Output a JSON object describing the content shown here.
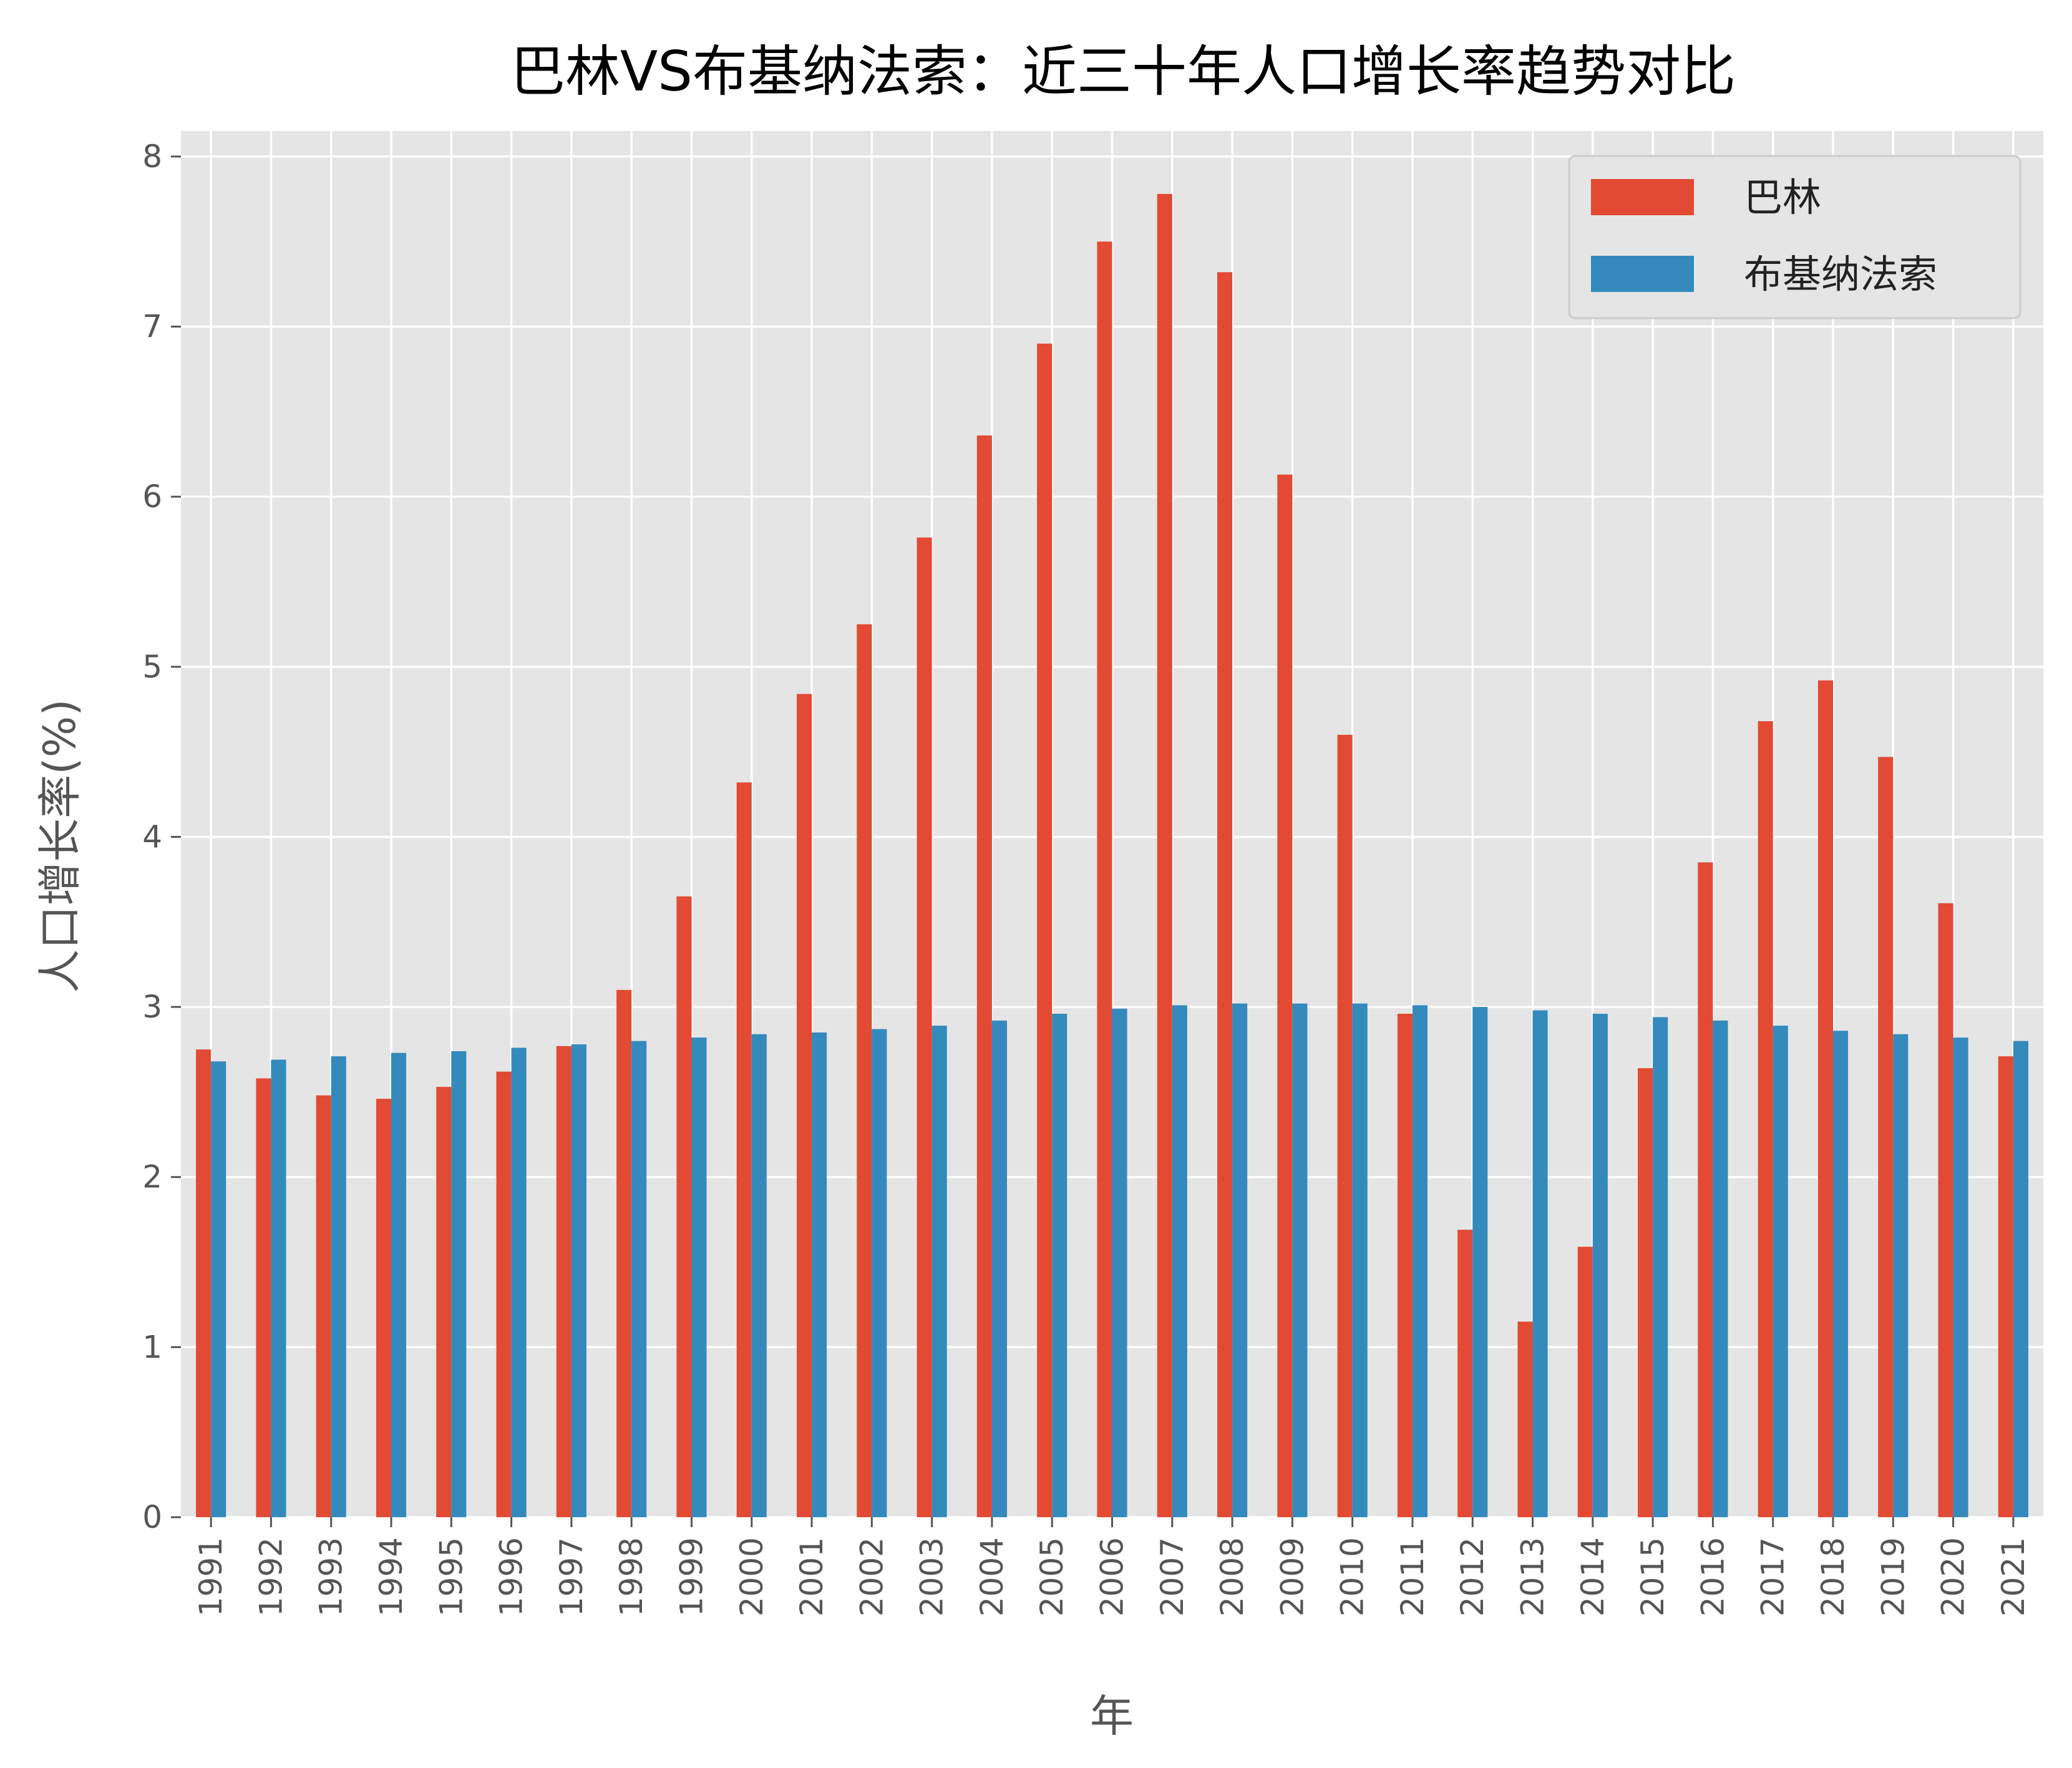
{
  "chart_data": {
    "type": "bar",
    "title": "巴林VS布基纳法索：近三十年人口增长率趋势对比",
    "xlabel": "年",
    "ylabel": "人口增长率(%)",
    "ylim": [
      0,
      8.15
    ],
    "yticks": [
      "0",
      "1",
      "2",
      "3",
      "4",
      "5",
      "6",
      "7",
      "8"
    ],
    "grid": true,
    "legend_position": "top-right",
    "categories": [
      "1991",
      "1992",
      "1993",
      "1994",
      "1995",
      "1996",
      "1997",
      "1998",
      "1999",
      "2000",
      "2001",
      "2002",
      "2003",
      "2004",
      "2005",
      "2006",
      "2007",
      "2008",
      "2009",
      "2010",
      "2011",
      "2012",
      "2013",
      "2014",
      "2015",
      "2016",
      "2017",
      "2018",
      "2019",
      "2020",
      "2021"
    ],
    "series": [
      {
        "name": "巴林",
        "color": "#E24A33",
        "values": [
          2.75,
          2.58,
          2.48,
          2.46,
          2.53,
          2.62,
          2.77,
          3.1,
          3.65,
          4.32,
          4.84,
          5.25,
          5.76,
          6.36,
          6.9,
          7.5,
          7.78,
          7.32,
          6.13,
          4.6,
          2.96,
          1.69,
          1.15,
          1.59,
          2.64,
          3.85,
          4.68,
          4.92,
          4.47,
          3.61,
          2.71
        ]
      },
      {
        "name": "布基纳法索",
        "color": "#348ABD",
        "values": [
          2.68,
          2.69,
          2.71,
          2.73,
          2.74,
          2.76,
          2.78,
          2.8,
          2.82,
          2.84,
          2.85,
          2.87,
          2.89,
          2.92,
          2.96,
          2.99,
          3.01,
          3.02,
          3.02,
          3.02,
          3.01,
          3.0,
          2.98,
          2.96,
          2.94,
          2.92,
          2.89,
          2.86,
          2.84,
          2.82,
          2.8
        ]
      }
    ]
  }
}
